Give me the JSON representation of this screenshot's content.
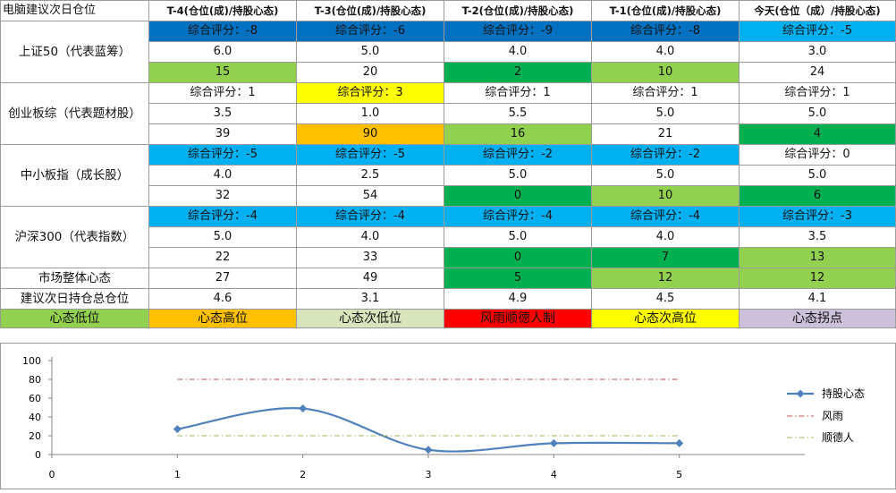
{
  "colors": {
    "blue": "#0070c0",
    "light_blue": "#00b0f0",
    "yellow": "#ffff00",
    "orange": "#ffc000",
    "red": "#ff0000",
    "light_green": "#92d050",
    "green": "#00b050",
    "pale_green": "#d8e4bc",
    "lavender": "#ccc0da",
    "series_line": "#4f81bd"
  },
  "header": [
    "电脑建议次日仓位",
    "T-4(仓位(成)/持股心态)",
    "T-3(仓位(成)/持股心态)",
    "T-2(仓位(成)/持股心态)",
    "T-1(仓位(成)/持股心态)",
    "今天(仓位（成）/持股心态)"
  ],
  "indices": [
    {
      "label": "上证50（代表蓝筹）",
      "scores": [
        "综合评分：-8",
        "综合评分：-6",
        "综合评分：-9",
        "综合评分：-8",
        "综合评分：-5"
      ],
      "score_colors": [
        "blue",
        "blue",
        "blue",
        "blue",
        "light_blue"
      ],
      "positions": [
        "6.0",
        "5.0",
        "4.0",
        "4.0",
        "3.0"
      ],
      "moods": [
        "15",
        "20",
        "2",
        "10",
        "24"
      ],
      "mood_colors": [
        "light_green",
        "",
        "green",
        "light_green",
        ""
      ]
    },
    {
      "label": "创业板综（代表题材股）",
      "scores": [
        "综合评分：1",
        "综合评分：3",
        "综合评分：1",
        "综合评分：1",
        "综合评分：1"
      ],
      "score_colors": [
        "",
        "yellow",
        "",
        "",
        ""
      ],
      "positions": [
        "3.5",
        "1.0",
        "5.5",
        "5.0",
        "5.0"
      ],
      "moods": [
        "39",
        "90",
        "16",
        "21",
        "4"
      ],
      "mood_colors": [
        "",
        "orange",
        "light_green",
        "",
        "green"
      ]
    },
    {
      "label": "中小板指（成长股）",
      "scores": [
        "综合评分：-5",
        "综合评分：-5",
        "综合评分：-2",
        "综合评分：-2",
        "综合评分：0"
      ],
      "score_colors": [
        "light_blue",
        "light_blue",
        "light_blue",
        "light_blue",
        ""
      ],
      "positions": [
        "4.0",
        "2.5",
        "5.0",
        "5.0",
        "5.0"
      ],
      "moods": [
        "32",
        "54",
        "0",
        "10",
        "6"
      ],
      "mood_colors": [
        "",
        "",
        "green",
        "light_green",
        "green"
      ]
    },
    {
      "label": "沪深300（代表指数）",
      "scores": [
        "综合评分：-4",
        "综合评分：-4",
        "综合评分：-4",
        "综合评分：-4",
        "综合评分：-3"
      ],
      "score_colors": [
        "light_blue",
        "light_blue",
        "light_blue",
        "light_blue",
        "light_blue"
      ],
      "positions": [
        "5.0",
        "4.0",
        "5.0",
        "4.0",
        "3.5"
      ],
      "moods": [
        "22",
        "33",
        "0",
        "7",
        "13"
      ],
      "mood_colors": [
        "",
        "",
        "green",
        "green",
        "light_green"
      ]
    }
  ],
  "market_mood": {
    "label": "市场整体心态",
    "values": [
      "27",
      "49",
      "5",
      "12",
      "12"
    ],
    "colors": [
      "",
      "",
      "green",
      "light_green",
      "light_green"
    ]
  },
  "suggest": {
    "label": "建议次日持仓总仓位",
    "values": [
      "4.6",
      "3.1",
      "4.9",
      "4.5",
      "4.1"
    ]
  },
  "legend": [
    {
      "label": "心态低位",
      "color": "light_green"
    },
    {
      "label": "心态高位",
      "color": "orange"
    },
    {
      "label": "心态次低位",
      "color": "pale_green"
    },
    {
      "label": "风雨顺德人制",
      "color": "red"
    },
    {
      "label": "心态次高位",
      "color": "yellow"
    },
    {
      "label": "心态拐点",
      "color": "lavender"
    }
  ],
  "chart_data": {
    "type": "line",
    "x": [
      1,
      2,
      3,
      4,
      5
    ],
    "xlim": [
      0,
      6
    ],
    "ylim": [
      0,
      100
    ],
    "y_ticks": [
      "0",
      "20",
      "40",
      "60",
      "80",
      "100"
    ],
    "x_ticks": [
      "0",
      "1",
      "2",
      "3",
      "4",
      "5"
    ],
    "grid": false,
    "legend_position": "right",
    "series": [
      {
        "name": "持股心态",
        "values": [
          27,
          49,
          5,
          12,
          12
        ],
        "style": "smooth-line-with-diamond-markers",
        "color": "#4f81bd"
      },
      {
        "name": "风雨",
        "values": [
          80,
          80,
          80,
          80,
          80
        ],
        "style": "dash-dot",
        "color": "#c0504d"
      },
      {
        "name": "顺德人",
        "values": [
          20,
          20,
          20,
          20,
          20
        ],
        "style": "dash-dot",
        "color": "#9bbb59"
      }
    ]
  }
}
